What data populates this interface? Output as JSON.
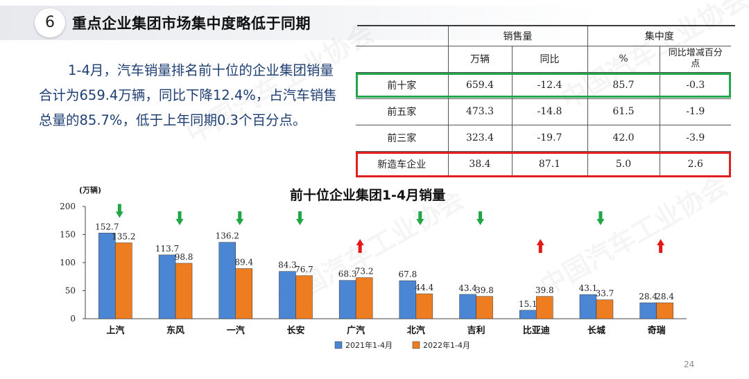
{
  "slide": {
    "section_number": "6",
    "title": "重点企业集团市场集中度略低于同期",
    "summary": "1-4月，汽车销量排名前十位的企业集团销量合计为659.4万辆，同比下降12.4%，占汽车销售总量的85.7%，低于上年同期0.3个百分点。",
    "page_number": "24",
    "watermark": "中国汽车工业协会"
  },
  "table": {
    "group_headers": [
      "销售量",
      "集中度"
    ],
    "sub_headers": [
      "万辆",
      "同比",
      "%",
      "同比增减百分点"
    ],
    "rows": [
      {
        "label": "前十家",
        "cells": [
          "659.4",
          "-12.4",
          "85.7",
          "-0.3"
        ],
        "highlight": "#22a64a"
      },
      {
        "label": "前五家",
        "cells": [
          "473.3",
          "-14.8",
          "61.5",
          "-1.9"
        ]
      },
      {
        "label": "前三家",
        "cells": [
          "323.4",
          "-19.7",
          "42.0",
          "-3.9"
        ]
      },
      {
        "label": "新造车企业",
        "cells": [
          "38.4",
          "87.1",
          "5.0",
          "2.6"
        ],
        "highlight": "#e02020"
      }
    ]
  },
  "chart_data": {
    "type": "bar",
    "title": "前十位企业集团1-4月销量",
    "ylabel": "(万辆)",
    "ylim": [
      0,
      200
    ],
    "yticks": [
      0,
      50,
      100,
      150,
      200
    ],
    "categories": [
      "上汽",
      "东风",
      "一汽",
      "长安",
      "广汽",
      "北汽",
      "吉利",
      "比亚迪",
      "长城",
      "奇瑞"
    ],
    "series": [
      {
        "name": "2021年1-4月",
        "color": "#4a86d4",
        "values": [
          152.7,
          113.7,
          136.2,
          84.3,
          68.3,
          67.8,
          43.4,
          15.1,
          43.1,
          28.4
        ]
      },
      {
        "name": "2022年1-4月",
        "color": "#ee7d22",
        "values": [
          135.2,
          98.8,
          89.4,
          76.7,
          73.2,
          44.4,
          39.8,
          39.8,
          33.7,
          28.4
        ]
      }
    ],
    "trend": [
      "down",
      "down",
      "down",
      "down",
      "up",
      "down",
      "down",
      "up",
      "down",
      "up"
    ],
    "trend_colors": {
      "down": "#21a646",
      "up": "#e31818"
    },
    "legend_position": "bottom",
    "grid": false
  }
}
